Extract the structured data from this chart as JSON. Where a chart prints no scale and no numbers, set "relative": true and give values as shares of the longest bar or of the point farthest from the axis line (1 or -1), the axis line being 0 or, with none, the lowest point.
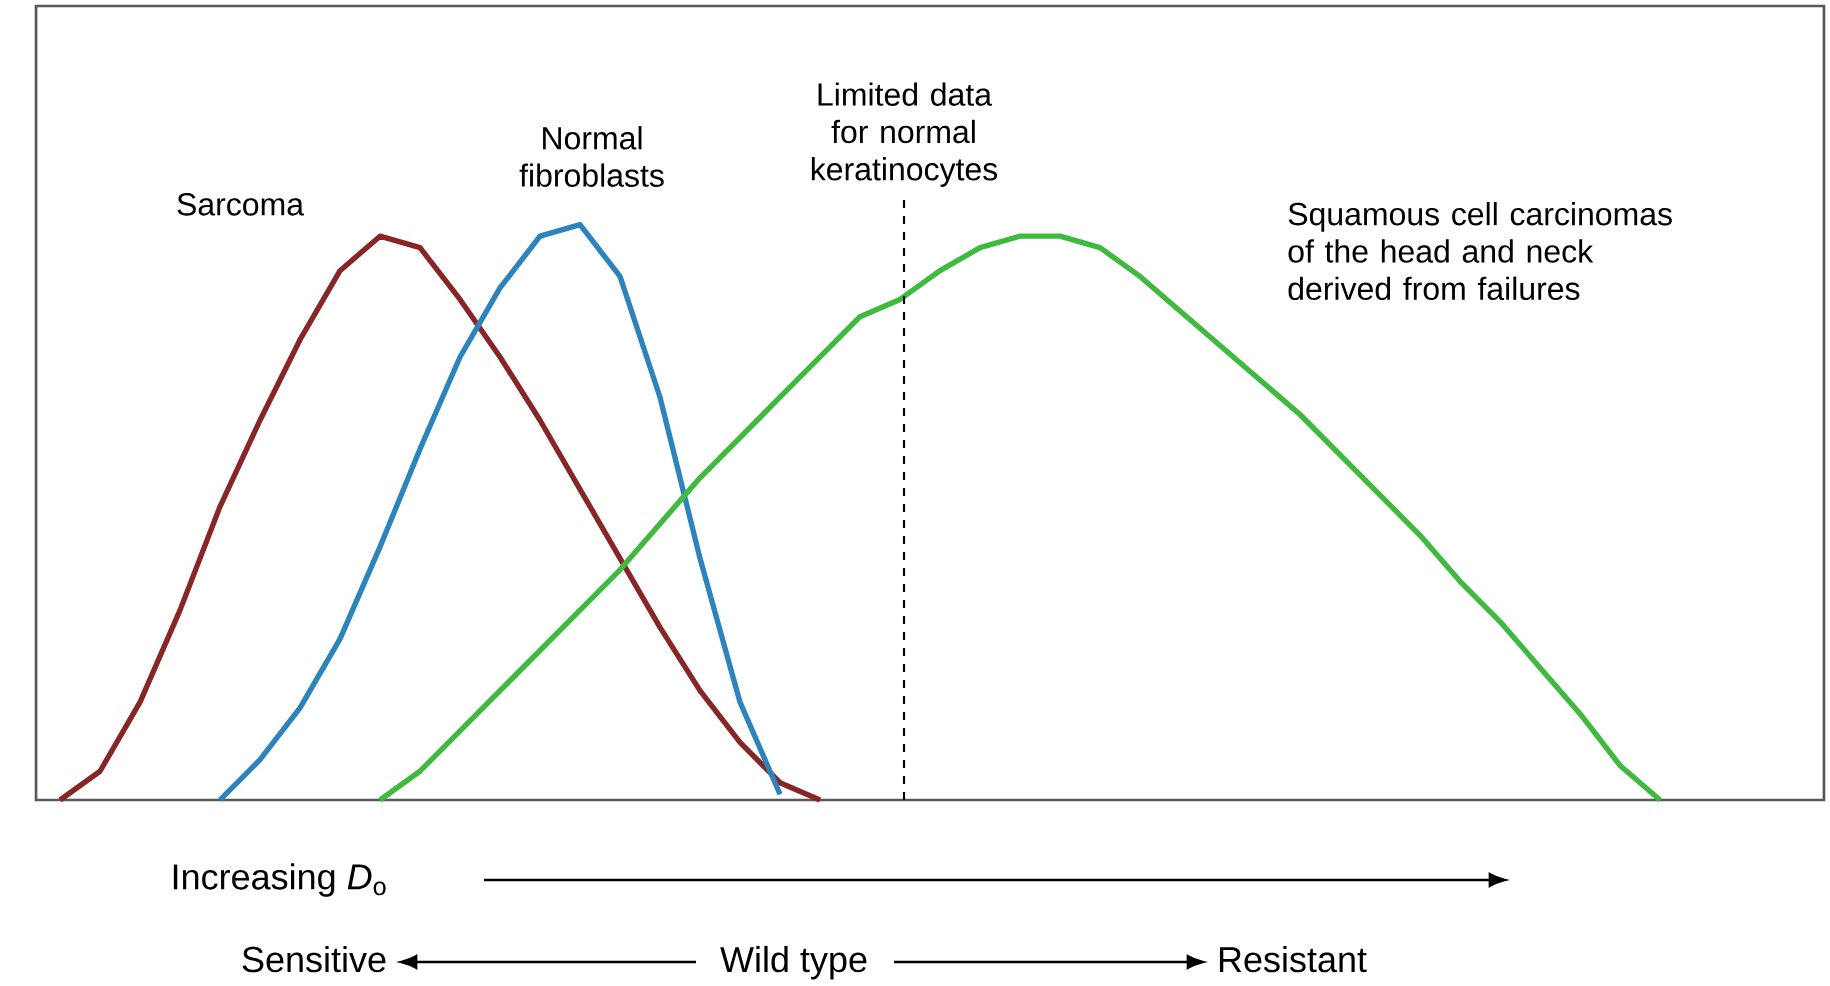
{
  "chart_data": {
    "type": "line",
    "relative": true,
    "categories": [
      null,
      null,
      null,
      null,
      null,
      null,
      null,
      null,
      null,
      null,
      null,
      null,
      null,
      null,
      null,
      null,
      null,
      null,
      null,
      null,
      null,
      null,
      null,
      null,
      null,
      null,
      null,
      null,
      null,
      null,
      null,
      null,
      null,
      null,
      null,
      null,
      null,
      null,
      null,
      null,
      null
    ],
    "series": [
      {
        "name": "Sarcoma",
        "color": "#8b2525",
        "values": [
          0,
          0.05,
          0.17,
          0.33,
          0.51,
          0.66,
          0.8,
          0.92,
          0.98,
          0.96,
          0.87,
          0.77,
          0.66,
          0.54,
          0.42,
          0.3,
          0.19,
          0.1,
          0.03,
          0,
          null,
          null,
          null,
          null,
          null,
          null,
          null,
          null,
          null,
          null,
          null,
          null,
          null,
          null,
          null,
          null,
          null,
          null,
          null,
          null,
          null
        ]
      },
      {
        "name": "Normal fibroblasts",
        "color": "#2a84c0",
        "values": [
          null,
          null,
          null,
          null,
          0,
          0.07,
          0.16,
          0.28,
          0.44,
          0.61,
          0.77,
          0.89,
          0.98,
          1,
          0.91,
          0.7,
          0.42,
          0.17,
          0.01,
          null,
          null,
          null,
          null,
          null,
          null,
          null,
          null,
          null,
          null,
          null,
          null,
          null,
          null,
          null,
          null,
          null,
          null,
          null,
          null,
          null,
          null
        ]
      },
      {
        "name": "Squamous cell carcinomas of the head and neck derived from failures",
        "color": "#3dbb3d",
        "values": [
          null,
          null,
          null,
          null,
          null,
          null,
          null,
          null,
          0,
          0.05,
          0.12,
          0.19,
          0.26,
          0.33,
          0.4,
          0.48,
          0.56,
          0.63,
          0.7,
          0.77,
          0.84,
          0.87,
          0.92,
          0.96,
          0.98,
          0.98,
          0.96,
          0.91,
          0.85,
          0.79,
          0.73,
          0.67,
          0.6,
          0.53,
          0.46,
          0.38,
          0.31,
          0.23,
          0.15,
          0.06,
          0
        ]
      }
    ],
    "xlabel": "Increasing *D*$_{o}$",
    "annotations": [
      "Sensitive",
      "Wild type",
      "Resistant",
      "Limited data for normal keratinocytes"
    ],
    "legend": false
  }
}
